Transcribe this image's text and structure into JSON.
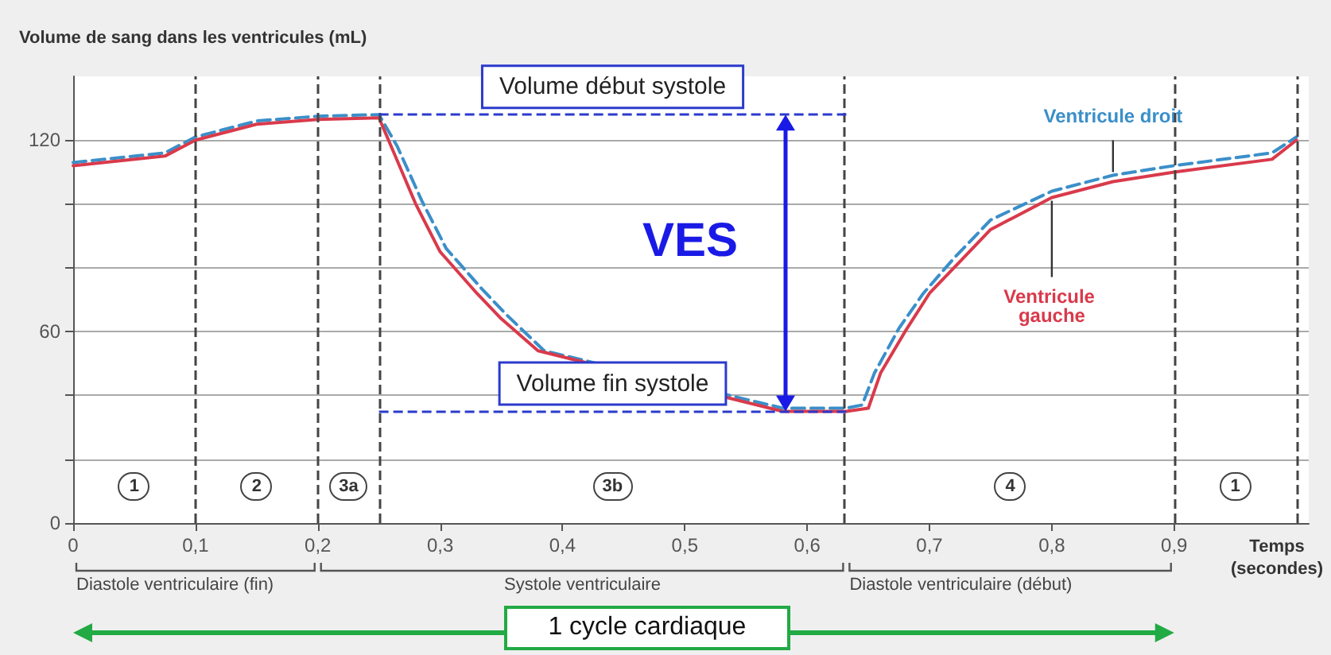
{
  "chart_data": {
    "type": "line",
    "ylabel": "Volume de sang dans les ventricules (mL)",
    "xlabel": "Temps (secondes)",
    "legend": false,
    "grid": "y",
    "marker": "none",
    "xlim": [
      0,
      1.01
    ],
    "xticks": [
      0,
      {
        "value": 0.1,
        "label": "0,1"
      },
      {
        "value": 0.2,
        "label": "0,2"
      },
      {
        "value": 0.3,
        "label": "0,3"
      },
      {
        "value": 0.4,
        "label": "0,4"
      },
      {
        "value": 0.5,
        "label": "0,5"
      },
      {
        "value": 0.6,
        "label": "0,6"
      },
      {
        "value": 0.7,
        "label": "0,7"
      },
      {
        "value": 0.8,
        "label": "0,8"
      },
      {
        "value": 0.9,
        "label": "0,9"
      }
    ],
    "ylim": [
      0,
      140
    ],
    "yticks": [
      0,
      {
        "value": 20,
        "label": null
      },
      {
        "value": 40,
        "label": null
      },
      60,
      {
        "value": 80,
        "label": null
      },
      {
        "value": 100,
        "label": null
      },
      120
    ],
    "series": [
      {
        "name": "Ventricule droit",
        "color": "#3b8fc9",
        "line_style": "dashed",
        "x": [
          0,
          0.075,
          0.1,
          0.15,
          0.2,
          0.25,
          0.265,
          0.285,
          0.305,
          0.335,
          0.355,
          0.385,
          0.42,
          0.58,
          0.632,
          0.645,
          0.655,
          0.675,
          0.695,
          0.72,
          0.75,
          0.8,
          0.85,
          0.9,
          0.98,
          1.0
        ],
        "values": [
          113,
          116,
          121,
          126,
          127.5,
          128,
          118,
          101,
          86,
          73,
          65,
          54,
          null,
          36,
          36,
          37,
          47,
          61,
          72,
          83,
          95,
          104,
          109,
          112,
          116,
          121
        ]
      },
      {
        "name": "Ventricule gauche",
        "color": "#d93a4b",
        "line_style": "solid",
        "x": [
          0,
          0.075,
          0.1,
          0.15,
          0.2,
          0.25,
          0.26,
          0.28,
          0.3,
          0.33,
          0.35,
          0.38,
          0.41,
          0.58,
          0.632,
          0.65,
          0.66,
          0.68,
          0.7,
          0.725,
          0.75,
          0.8,
          0.85,
          0.9,
          0.98,
          1.0
        ],
        "values": [
          112,
          115,
          120,
          125,
          126.5,
          127,
          118,
          100,
          85,
          72,
          64,
          54,
          null,
          35,
          35,
          36,
          47,
          60,
          72,
          82,
          92,
          102,
          107,
          110,
          114,
          120
        ]
      }
    ],
    "ref_lines": [
      {
        "axis": "x",
        "value": 0.1,
        "line_style": "dashed",
        "color": "#444444"
      },
      {
        "axis": "x",
        "value": 0.2,
        "line_style": "dashed",
        "color": "#444444"
      },
      {
        "axis": "x",
        "value": 0.25,
        "line_style": "dashed",
        "color": "#444444"
      },
      {
        "axis": "x",
        "value": 0.632,
        "line_style": "dashed",
        "color": "#444444"
      },
      {
        "axis": "x",
        "value": 0.9,
        "line_style": "dashed",
        "color": "#444444"
      },
      {
        "axis": "x",
        "value": 1.0,
        "line_style": "dashed",
        "color": "#444444"
      },
      {
        "axis": "y",
        "value": 128,
        "label": "Volume début systole",
        "line_style": "dashed",
        "color": "#2b3bcc"
      },
      {
        "axis": "y",
        "value": 35,
        "label": "Volume fin systole",
        "line_style": "dashed",
        "color": "#2b3bcc"
      }
    ],
    "annotations": [
      "VES",
      "Diastole ventriculaire (fin)",
      "Systole ventriculaire",
      "Diastole ventriculaire (début)",
      "1 cycle cardiaque",
      "1",
      "2",
      "3a",
      "3b",
      "4",
      "1"
    ]
  }
}
